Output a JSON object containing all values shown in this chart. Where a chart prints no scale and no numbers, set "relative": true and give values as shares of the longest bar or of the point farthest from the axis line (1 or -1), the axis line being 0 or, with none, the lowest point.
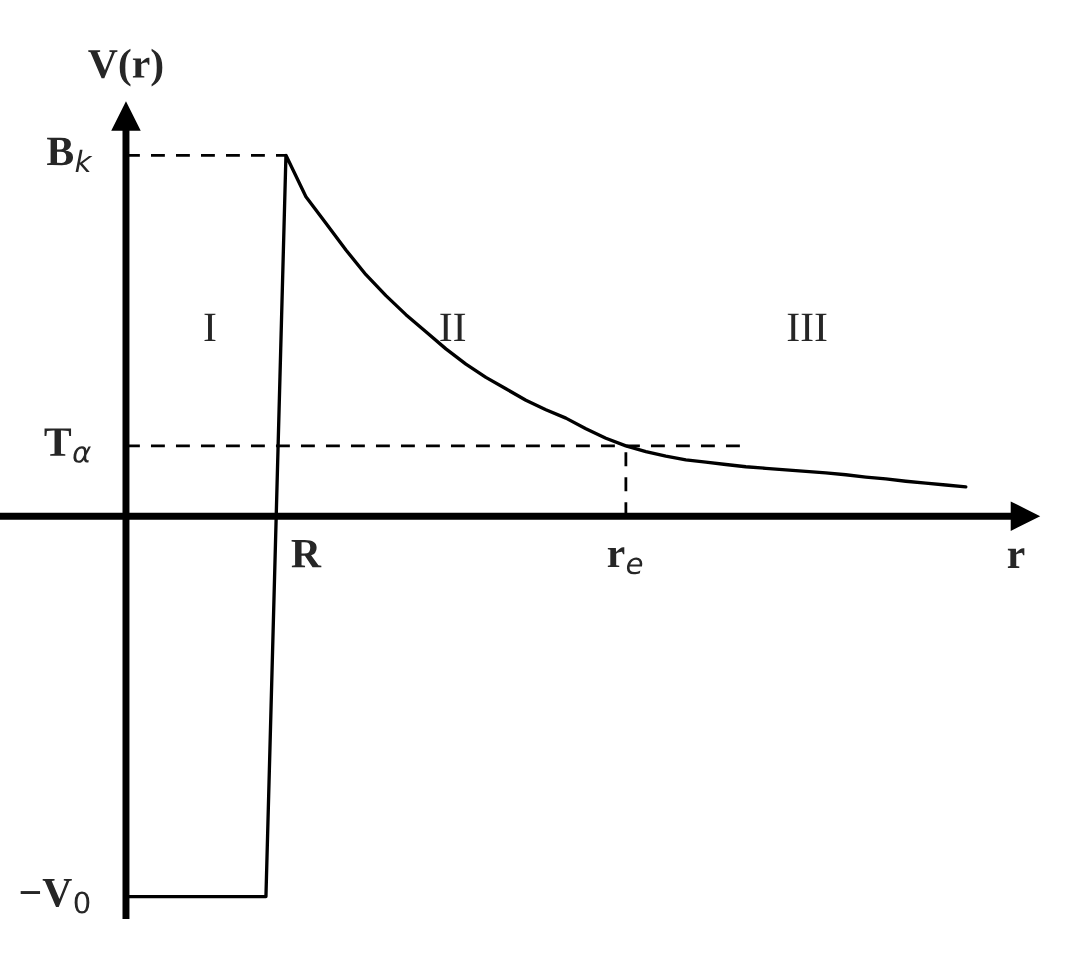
{
  "chart_data": {
    "type": "line",
    "relative": true,
    "ylabel": "V(r)",
    "xlabel": "r",
    "categories": [
      null,
      null,
      null,
      null,
      null,
      null,
      null,
      null,
      null,
      "R",
      null,
      null,
      null,
      null,
      null,
      null,
      null,
      null,
      null,
      null,
      null,
      null,
      null,
      null,
      null,
      "r$_{e}$",
      null,
      null,
      null,
      null,
      null,
      null,
      null,
      null,
      null,
      null,
      null,
      null,
      null,
      null,
      null,
      null,
      null
    ],
    "series": [
      {
        "color": "#000000",
        "line_style": "solid",
        "values": [
          -1,
          -1,
          -1,
          -1,
          -1,
          -1,
          -1,
          -1,
          0.949,
          0.84,
          0.77,
          0.7,
          0.635,
          0.58,
          0.53,
          0.485,
          0.44,
          0.4,
          0.365,
          0.335,
          0.305,
          0.28,
          0.258,
          0.23,
          0.205,
          0.185,
          0.17,
          0.158,
          0.148,
          0.142,
          0.136,
          0.13,
          0.126,
          0.122,
          0.118,
          0.114,
          0.109,
          0.103,
          0.098,
          0.092,
          0.087,
          0.082,
          0.077
        ]
      },
      {
        "color": "#000000",
        "line_style": "dashed",
        "values": [
          0.949,
          0.949,
          0.949,
          0.949,
          0.949,
          0.949,
          0.949,
          0.949,
          0.949,
          null,
          null,
          null,
          null,
          null,
          null,
          null,
          null,
          null,
          null,
          null,
          null,
          null,
          null,
          null,
          null,
          null,
          null,
          null,
          null,
          null,
          null,
          null,
          null,
          null,
          null,
          null,
          null,
          null,
          null,
          null,
          null,
          null,
          null
        ]
      },
      {
        "color": "#000000",
        "line_style": "dashed",
        "values": [
          0.185,
          0.185,
          0.185,
          0.185,
          0.185,
          0.185,
          0.185,
          0.185,
          0.185,
          0.185,
          0.185,
          0.185,
          0.185,
          0.185,
          0.185,
          0.185,
          0.185,
          0.185,
          0.185,
          0.185,
          0.185,
          0.185,
          0.185,
          0.185,
          0.185,
          0.185,
          0.185,
          0.185,
          0.185,
          0.185,
          0.185,
          0.185,
          null,
          null,
          null,
          null,
          null,
          null,
          null,
          null,
          null,
          null,
          null
        ]
      }
    ],
    "ref_lines": [
      {
        "axis": "x",
        "value": "r$_{e}$",
        "color": "#000000",
        "line_style": "dashed"
      }
    ],
    "annotations": [
      "B$_{k}$",
      "T$_{α}$",
      "−V$_{0}$",
      "I",
      "II",
      "III"
    ]
  }
}
